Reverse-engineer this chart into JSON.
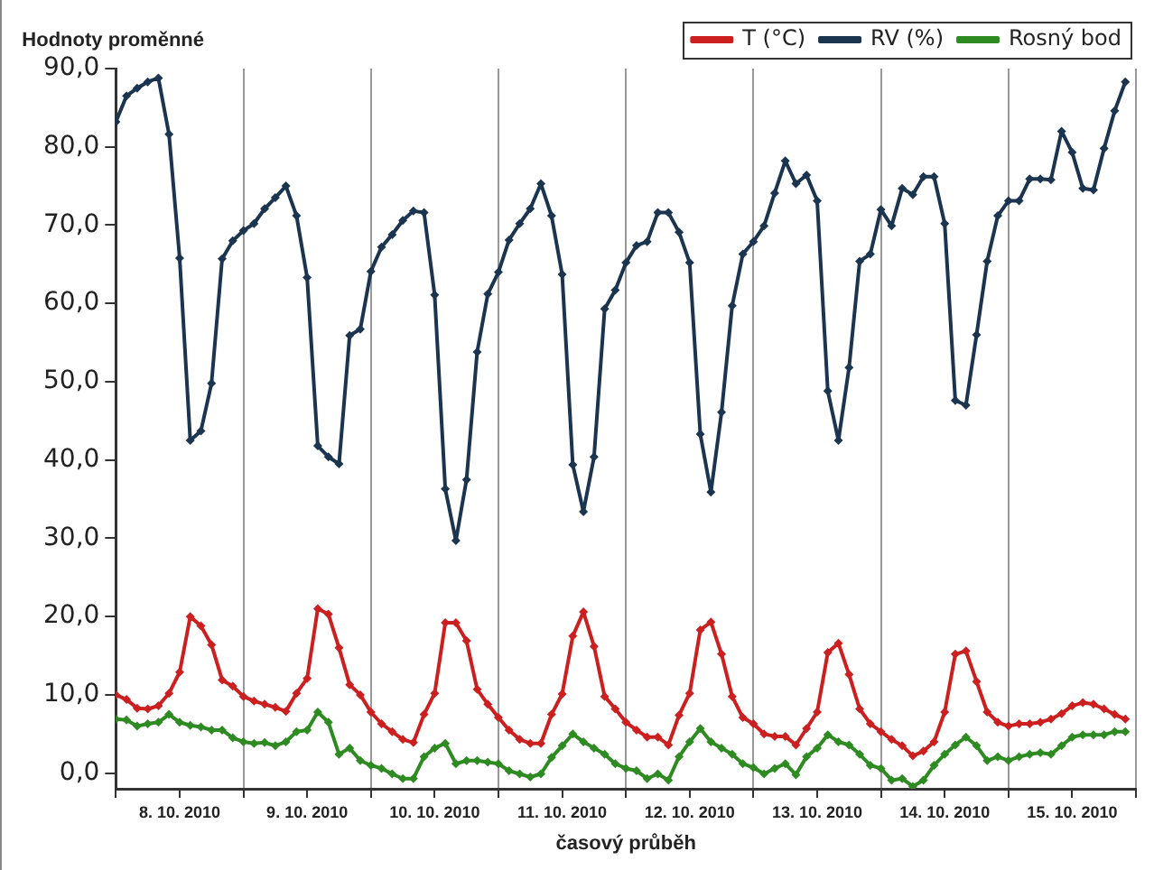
{
  "chart_data": {
    "type": "line",
    "ylabel": "Hodnoty proměnné",
    "xlabel": "časový průběh",
    "x": [
      "2010-10-08T00:00",
      "2010-10-08T02:00",
      "2010-10-08T04:00",
      "2010-10-08T06:00",
      "2010-10-08T08:00",
      "2010-10-08T10:00",
      "2010-10-08T12:00",
      "2010-10-08T14:00",
      "2010-10-08T16:00",
      "2010-10-08T18:00",
      "2010-10-08T20:00",
      "2010-10-08T22:00",
      "2010-10-09T00:00",
      "2010-10-09T02:00",
      "2010-10-09T04:00",
      "2010-10-09T06:00",
      "2010-10-09T08:00",
      "2010-10-09T10:00",
      "2010-10-09T12:00",
      "2010-10-09T14:00",
      "2010-10-09T16:00",
      "2010-10-09T18:00",
      "2010-10-09T20:00",
      "2010-10-09T22:00",
      "2010-10-10T00:00",
      "2010-10-10T02:00",
      "2010-10-10T04:00",
      "2010-10-10T06:00",
      "2010-10-10T08:00",
      "2010-10-10T10:00",
      "2010-10-10T12:00",
      "2010-10-10T14:00",
      "2010-10-10T16:00",
      "2010-10-10T18:00",
      "2010-10-10T20:00",
      "2010-10-10T22:00",
      "2010-10-11T00:00",
      "2010-10-11T02:00",
      "2010-10-11T04:00",
      "2010-10-11T06:00",
      "2010-10-11T08:00",
      "2010-10-11T10:00",
      "2010-10-11T12:00",
      "2010-10-11T14:00",
      "2010-10-11T16:00",
      "2010-10-11T18:00",
      "2010-10-11T20:00",
      "2010-10-11T22:00",
      "2010-10-12T00:00",
      "2010-10-12T02:00",
      "2010-10-12T04:00",
      "2010-10-12T06:00",
      "2010-10-12T08:00",
      "2010-10-12T10:00",
      "2010-10-12T12:00",
      "2010-10-12T14:00",
      "2010-10-12T16:00",
      "2010-10-12T18:00",
      "2010-10-12T20:00",
      "2010-10-12T22:00",
      "2010-10-13T00:00",
      "2010-10-13T02:00",
      "2010-10-13T04:00",
      "2010-10-13T06:00",
      "2010-10-13T08:00",
      "2010-10-13T10:00",
      "2010-10-13T12:00",
      "2010-10-13T14:00",
      "2010-10-13T16:00",
      "2010-10-13T18:00",
      "2010-10-13T20:00",
      "2010-10-13T22:00",
      "2010-10-14T00:00",
      "2010-10-14T02:00",
      "2010-10-14T04:00",
      "2010-10-14T06:00",
      "2010-10-14T08:00",
      "2010-10-14T10:00",
      "2010-10-14T12:00",
      "2010-10-14T14:00",
      "2010-10-14T16:00",
      "2010-10-14T18:00",
      "2010-10-14T20:00",
      "2010-10-14T22:00",
      "2010-10-15T00:00",
      "2010-10-15T02:00",
      "2010-10-15T04:00",
      "2010-10-15T06:00",
      "2010-10-15T08:00",
      "2010-10-15T10:00",
      "2010-10-15T12:00",
      "2010-10-15T14:00",
      "2010-10-15T16:00",
      "2010-10-15T18:00",
      "2010-10-15T20:00",
      "2010-10-15T22:00"
    ],
    "series": [
      {
        "name": "T (°C)",
        "color": "#cc2020",
        "values": [
          10.0,
          9.4,
          8.3,
          8.2,
          8.6,
          10.2,
          12.9,
          20.0,
          18.8,
          16.4,
          11.9,
          11.1,
          9.8,
          9.2,
          8.8,
          8.4,
          7.9,
          10.2,
          12.1,
          21.0,
          20.3,
          16.0,
          11.3,
          10.0,
          7.8,
          6.3,
          5.3,
          4.3,
          3.9,
          7.5,
          10.2,
          19.2,
          19.2,
          16.9,
          10.7,
          8.8,
          7.1,
          5.5,
          4.3,
          3.8,
          3.8,
          7.5,
          10.1,
          17.5,
          20.6,
          16.2,
          9.8,
          8.2,
          6.5,
          5.5,
          4.6,
          4.6,
          3.6,
          7.4,
          10.2,
          18.3,
          19.3,
          15.2,
          9.8,
          7.1,
          6.3,
          5.0,
          4.7,
          4.7,
          3.6,
          5.7,
          7.8,
          15.4,
          16.6,
          12.6,
          8.2,
          6.3,
          5.3,
          4.3,
          3.5,
          2.2,
          2.8,
          4.0,
          7.8,
          15.2,
          15.6,
          11.7,
          7.8,
          6.5,
          6.0,
          6.3,
          6.3,
          6.5,
          6.9,
          7.6,
          8.6,
          9.0,
          8.8,
          8.2,
          7.5,
          6.9
        ]
      },
      {
        "name": "RV (%)",
        "color": "#1b3550",
        "values": [
          83.2,
          86.5,
          87.5,
          88.3,
          88.8,
          81.6,
          65.8,
          42.5,
          43.7,
          49.8,
          65.7,
          68.0,
          69.3,
          70.2,
          72.1,
          73.5,
          75.0,
          71.2,
          63.3,
          41.8,
          40.4,
          39.5,
          55.9,
          56.7,
          64.1,
          67.2,
          68.8,
          70.6,
          71.8,
          71.6,
          61.1,
          36.3,
          29.7,
          37.5,
          53.8,
          61.2,
          64.0,
          68.1,
          70.2,
          72.1,
          75.3,
          71.2,
          63.7,
          39.4,
          33.4,
          40.4,
          59.3,
          61.7,
          65.2,
          67.4,
          67.9,
          71.6,
          71.6,
          69.1,
          65.2,
          43.3,
          35.9,
          46.1,
          59.7,
          66.3,
          67.9,
          69.9,
          74.1,
          78.2,
          75.3,
          76.4,
          73.1,
          48.8,
          42.5,
          51.8,
          65.4,
          66.3,
          72.0,
          69.9,
          74.7,
          73.9,
          76.2,
          76.2,
          70.2,
          47.6,
          47.0,
          56.0,
          65.4,
          71.2,
          73.1,
          73.1,
          75.9,
          75.9,
          75.8,
          82.0,
          79.3,
          74.7,
          74.5,
          79.8,
          84.6,
          88.3
        ]
      },
      {
        "name": "Rosný bod",
        "color": "#2e8b22",
        "values": [
          6.9,
          6.8,
          6.0,
          6.3,
          6.5,
          7.5,
          6.5,
          6.1,
          5.9,
          5.5,
          5.5,
          4.5,
          4.0,
          3.8,
          3.9,
          3.5,
          4.0,
          5.3,
          5.5,
          7.8,
          6.5,
          2.4,
          3.2,
          1.6,
          1.0,
          0.6,
          -0.1,
          -0.7,
          -0.7,
          2.1,
          3.2,
          3.8,
          1.2,
          1.6,
          1.6,
          1.4,
          1.2,
          0.3,
          -0.1,
          -0.5,
          -0.1,
          2.0,
          3.5,
          5.0,
          4.0,
          3.2,
          2.4,
          1.2,
          0.6,
          0.3,
          -0.7,
          -0.1,
          -0.9,
          2.1,
          4.0,
          5.7,
          4.0,
          3.2,
          2.4,
          1.2,
          0.7,
          -0.1,
          0.6,
          1.2,
          -0.2,
          2.1,
          3.2,
          4.9,
          4.0,
          3.6,
          2.4,
          1.0,
          0.6,
          -0.9,
          -0.7,
          -1.7,
          -0.9,
          1.0,
          2.4,
          3.6,
          4.6,
          3.5,
          1.6,
          2.1,
          1.6,
          2.1,
          2.4,
          2.6,
          2.4,
          3.5,
          4.6,
          4.9,
          4.9,
          4.9,
          5.3,
          5.3
        ]
      }
    ],
    "xlim": [
      "2010-10-08T00:00",
      "2010-10-16T00:00"
    ],
    "xticks": [
      {
        "value": "2010-10-08T00:00",
        "label": null
      },
      {
        "value": "2010-10-08T12:00",
        "label": "8. 10. 2010"
      },
      {
        "value": "2010-10-09T00:00",
        "label": null
      },
      {
        "value": "2010-10-09T12:00",
        "label": "9. 10. 2010"
      },
      {
        "value": "2010-10-10T00:00",
        "label": null
      },
      {
        "value": "2010-10-10T12:00",
        "label": "10. 10. 2010"
      },
      {
        "value": "2010-10-11T00:00",
        "label": null
      },
      {
        "value": "2010-10-11T12:00",
        "label": "11. 10. 2010"
      },
      {
        "value": "2010-10-12T00:00",
        "label": null
      },
      {
        "value": "2010-10-12T12:00",
        "label": "12. 10. 2010"
      },
      {
        "value": "2010-10-13T00:00",
        "label": null
      },
      {
        "value": "2010-10-13T12:00",
        "label": "13. 10. 2010"
      },
      {
        "value": "2010-10-14T00:00",
        "label": null
      },
      {
        "value": "2010-10-14T12:00",
        "label": "14. 10. 2010"
      },
      {
        "value": "2010-10-15T00:00",
        "label": null
      },
      {
        "value": "2010-10-15T12:00",
        "label": "15. 10. 2010"
      },
      {
        "value": "2010-10-16T00:00",
        "label": null
      }
    ],
    "ylim": [
      -2,
      90
    ],
    "yticks": [
      {
        "value": 0,
        "label": "0,0"
      },
      {
        "value": 10,
        "label": "10,0"
      },
      {
        "value": 20,
        "label": "20,0"
      },
      {
        "value": 30,
        "label": "30,0"
      },
      {
        "value": 40,
        "label": "40,0"
      },
      {
        "value": 50,
        "label": "50,0"
      },
      {
        "value": 60,
        "label": "60,0"
      },
      {
        "value": 70,
        "label": "70,0"
      },
      {
        "value": 80,
        "label": "80,0"
      },
      {
        "value": 90,
        "label": "90,0"
      }
    ],
    "grid": "x",
    "legend": "top right",
    "marker": "diamond",
    "line_style": "solid"
  }
}
